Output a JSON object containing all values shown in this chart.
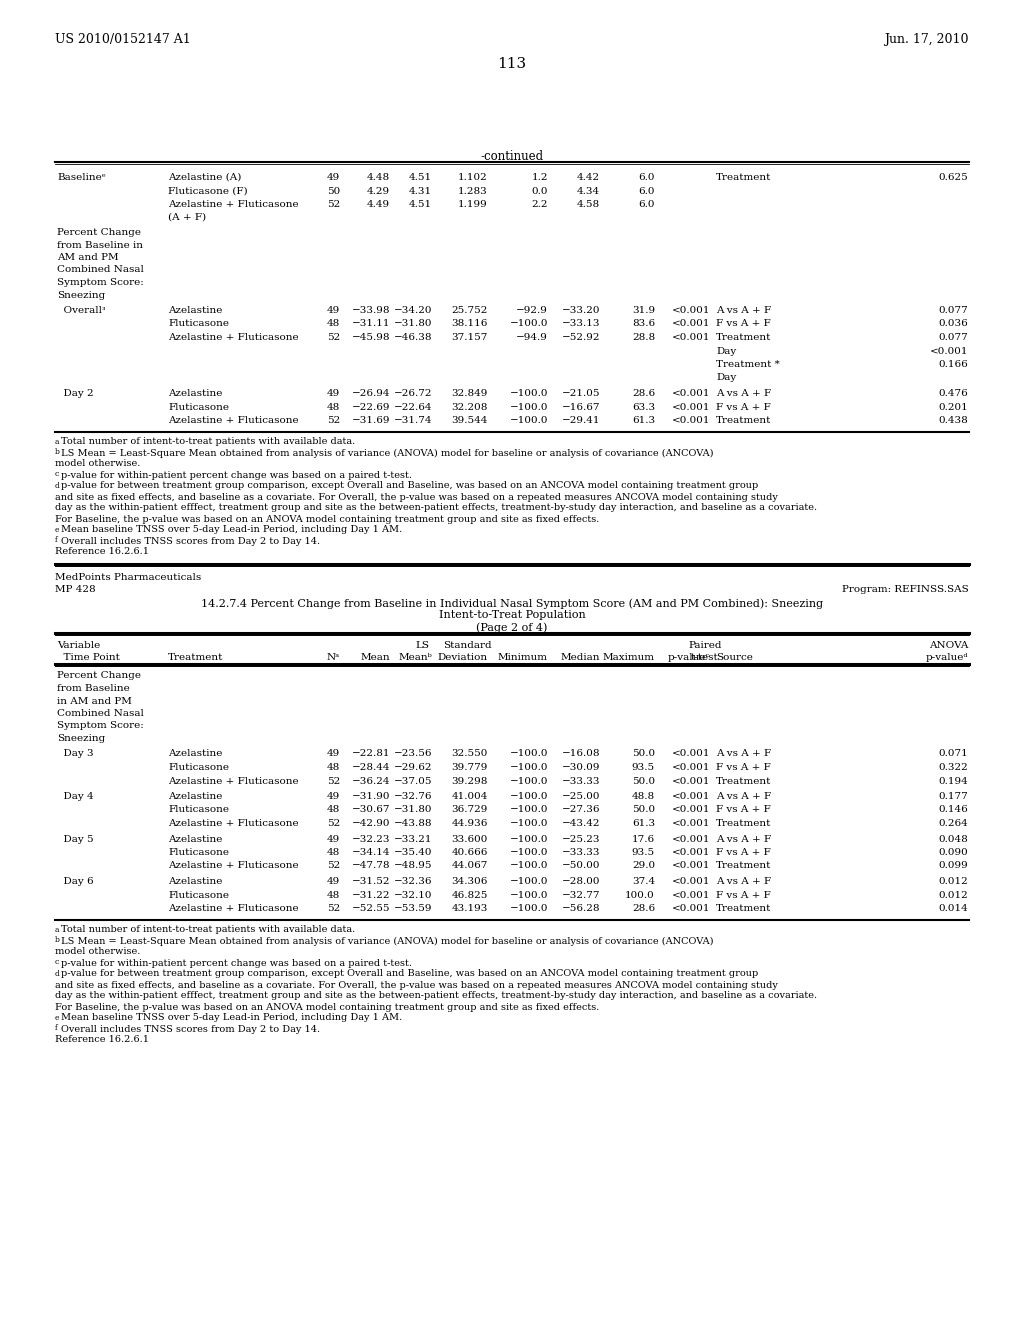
{
  "page_header_left": "US 2010/0152147 A1",
  "page_header_right": "Jun. 17, 2010",
  "page_number": "113",
  "continued_label": "-continued",
  "top_footnotes": [
    "aTotal number of intent-to-treat patients with available data.",
    "bLS Mean = Least-Square Mean obtained from analysis of variance (ANOVA) model for baseline or analysis of covariance (ANCOVA)",
    "model otherwise.",
    "cp-value for within-patient percent change was based on a paired t-test.",
    "dp-value for between treatment group comparison, except Overall and Baseline, was based on an ANCOVA model containing treatment group",
    "and site as fixed effects, and baseline as a covariate. For Overall, the p-value was based on a repeated measures ANCOVA model containing study",
    "day as the within-patient efffect, treatment group and site as the between-patient effects, treatment-by-study day interaction, and baseline as a covariate.",
    "For Baseline, the p-value was based on an ANOVA model containing treatment group and site as fixed effects.",
    "eMean baseline TNSS over 5-day Lead-in Period, including Day 1 AM.",
    "fOverall includes TNSS scores from Day 2 to Day 14.",
    "Reference 16.2.6.1"
  ],
  "top_footnote_supers": [
    "a",
    "b",
    "",
    "c",
    "d",
    "",
    "",
    "",
    "e",
    "f",
    ""
  ],
  "section2_header_left1": "MedPoints Pharmaceuticals",
  "section2_header_left2": "MP 428",
  "section2_header_right": "Program: REFINSS.SAS",
  "section2_title1": "14.2.7.4 Percent Change from Baseline in Individual Nasal Symptom Score (AM and PM Combined): Sneezing",
  "section2_title2": "Intent-to-Treat Population",
  "section2_title3": "(Page 2 of 4)",
  "bottom_footnotes": [
    "aTotal number of intent-to-treat patients with available data.",
    "bLS Mean = Least-Square Mean obtained from analysis of variance (ANOVA) model for baseline or analysis of covariance (ANCOVA)",
    "model otherwise.",
    "cp-value for within-patient percent change was based on a paired t-test.",
    "dp-value for between treatment group comparison, except Overall and Baseline, was based on an ANCOVA model containing treatment group",
    "and site as fixed effects, and baseline as a covariate. For Overall, the p-value was based on a repeated measures ANCOVA model containing study",
    "day as the within-patient efffect, treatment group and site as the between-patient effects, treatment-by-study day interaction, and baseline as a covariate.",
    "For Baseline, the p-value was based on an ANOVA model containing treatment group and site as fixed effects.",
    "eMean baseline TNSS over 5-day Lead-in Period, including Day 1 AM.",
    "fOverall includes TNSS scores from Day 2 to Day 14.",
    "Reference 16.2.6.1"
  ],
  "bottom_footnote_supers": [
    "a",
    "b",
    "",
    "c",
    "d",
    "",
    "",
    "",
    "e",
    "f",
    ""
  ]
}
